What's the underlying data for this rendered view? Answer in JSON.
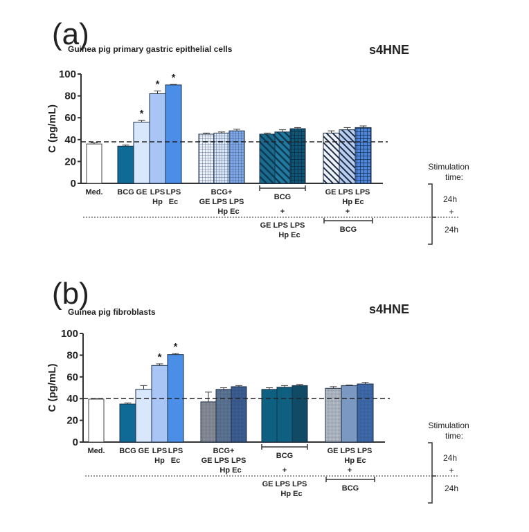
{
  "chart_data": [
    {
      "type": "bar",
      "panel_label": "(a)",
      "subtitle": "Guinea pig primary gastric epithelial cells",
      "title": "s4HNE",
      "ylabel": "C (pg/mL)",
      "ylim": [
        0,
        100
      ],
      "yticks": [
        "0",
        "20",
        "40",
        "60",
        "80",
        "100"
      ],
      "reference_line": 38,
      "values": [
        36,
        34,
        56,
        82,
        90,
        45,
        46,
        48,
        45,
        47,
        50,
        46,
        49,
        51
      ],
      "errors": [
        1,
        1,
        1.5,
        2.5,
        0.5,
        1,
        1,
        1.5,
        1,
        2,
        1,
        2,
        2,
        1.5
      ],
      "significant": [
        false,
        false,
        true,
        true,
        true,
        false,
        false,
        false,
        false,
        false,
        false,
        false,
        false,
        false
      ],
      "colors": [
        "#ffffff",
        "#0f6b96",
        "#d8e7fb",
        "#a8c5f5",
        "#4a8ee8",
        "#eef3fa",
        "#dbe6f6",
        "#7ea8e8",
        "#1b6b8f",
        "#237aa0",
        "#0f5676",
        "#eef2f8",
        "#b8cdf0",
        "#4d86da"
      ],
      "patterns": [
        "none",
        "none",
        "none",
        "none",
        "none",
        "grid",
        "grid",
        "grid",
        "chevron",
        "chevron",
        "check",
        "diag",
        "diag",
        "check"
      ],
      "significance_mark": "*"
    },
    {
      "type": "bar",
      "panel_label": "(b)",
      "subtitle": "Guinea pig fibroblasts",
      "title": "s4HNE",
      "ylabel": "C (pg/mL)",
      "ylim": [
        0,
        100
      ],
      "yticks": [
        "0",
        "20",
        "40",
        "60",
        "80",
        "100"
      ],
      "reference_line": 40,
      "values": [
        39.5,
        35,
        48.5,
        70.5,
        80.5,
        37,
        48.5,
        51,
        48.5,
        50.5,
        52,
        49.5,
        52,
        53.5
      ],
      "errors": [
        0.5,
        1,
        3.5,
        1.5,
        1,
        9,
        1.5,
        1,
        1.5,
        1.5,
        1,
        1.5,
        0.5,
        1.5
      ],
      "significant": [
        false,
        false,
        false,
        true,
        true,
        false,
        false,
        false,
        false,
        false,
        false,
        false,
        false,
        false
      ],
      "colors": [
        "#ffffff",
        "#0f6b96",
        "#d8e7fb",
        "#a8c5f5",
        "#4a8ee8",
        "#8c919c",
        "#5f7798",
        "#3c5f96",
        "#0e6080",
        "#0f5f80",
        "#0d4f6a",
        "#b9c2cb",
        "#7b98c2",
        "#3f6db0"
      ],
      "patterns": [
        "none",
        "none",
        "none",
        "none",
        "none",
        "fine",
        "fine",
        "fine",
        "none",
        "none",
        "fine",
        "fine",
        "none",
        "fine"
      ],
      "significance_mark": "*"
    }
  ],
  "x_labels": {
    "med": "Med.",
    "single": [
      [
        "BCG"
      ],
      [
        "GE"
      ],
      [
        "LPS",
        "Hp"
      ],
      [
        "LPS",
        "Ec"
      ]
    ],
    "group2": [
      "BCG+",
      "GE LPS LPS",
      "Hp  Ec"
    ],
    "group3": {
      "bracket": "BCG",
      "plus": "+",
      "lines": [
        "GE LPS LPS",
        "Hp  Ec"
      ]
    },
    "group4": {
      "lines": [
        "GE LPS LPS",
        "Hp  Ec"
      ],
      "plus": "+",
      "bracket": "BCG"
    },
    "stimulation": {
      "title": [
        "Stimulation",
        "time:"
      ],
      "first": "24h",
      "plus": "+",
      "second": "24h"
    }
  }
}
